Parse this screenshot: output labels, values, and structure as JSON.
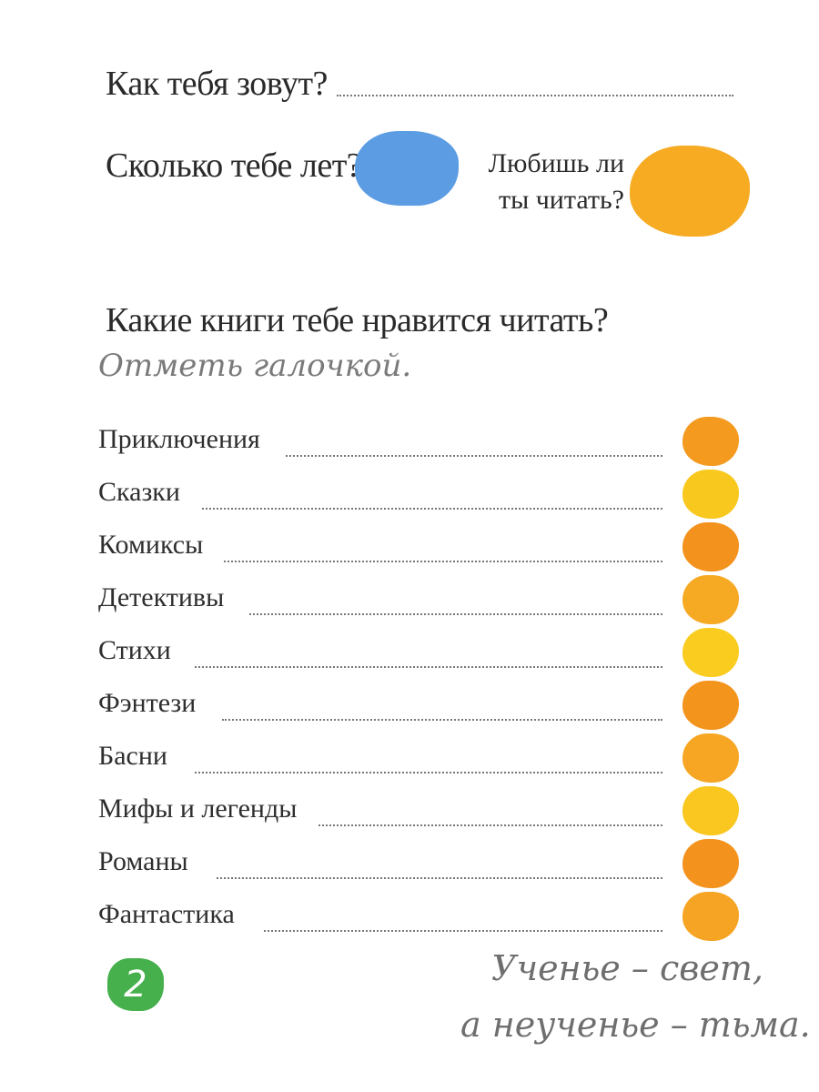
{
  "header": {
    "name_question": "Как тебя зовут?",
    "age_question": "Сколько тебе лет?",
    "reading_question_line1": "Любишь ли",
    "reading_question_line2": "ты читать?"
  },
  "books": {
    "question": "Какие книги тебе нравится читать?",
    "instruction": "Отметь галочкой.",
    "items": [
      {
        "label": "Приключения",
        "color": "#f39a1f"
      },
      {
        "label": "Сказки",
        "color": "#f9c81e"
      },
      {
        "label": "Комиксы",
        "color": "#f3921c"
      },
      {
        "label": "Детективы",
        "color": "#f6aa23"
      },
      {
        "label": "Стихи",
        "color": "#f9cc1f"
      },
      {
        "label": "Фэнтези",
        "color": "#f3941d"
      },
      {
        "label": "Басни",
        "color": "#f6a623"
      },
      {
        "label": "Мифы и легенды",
        "color": "#f9c71f"
      },
      {
        "label": "Романы",
        "color": "#f3931d"
      },
      {
        "label": "Фантастика",
        "color": "#f6a423"
      }
    ]
  },
  "footer": {
    "page_number": "2",
    "proverb_line1": "Ученье – свет,",
    "proverb_line2": "а неученье – тьма."
  },
  "colors": {
    "blue_blob": "#5b9ce3",
    "orange_blob": "#f6ab23",
    "page_badge": "#46b04c"
  }
}
